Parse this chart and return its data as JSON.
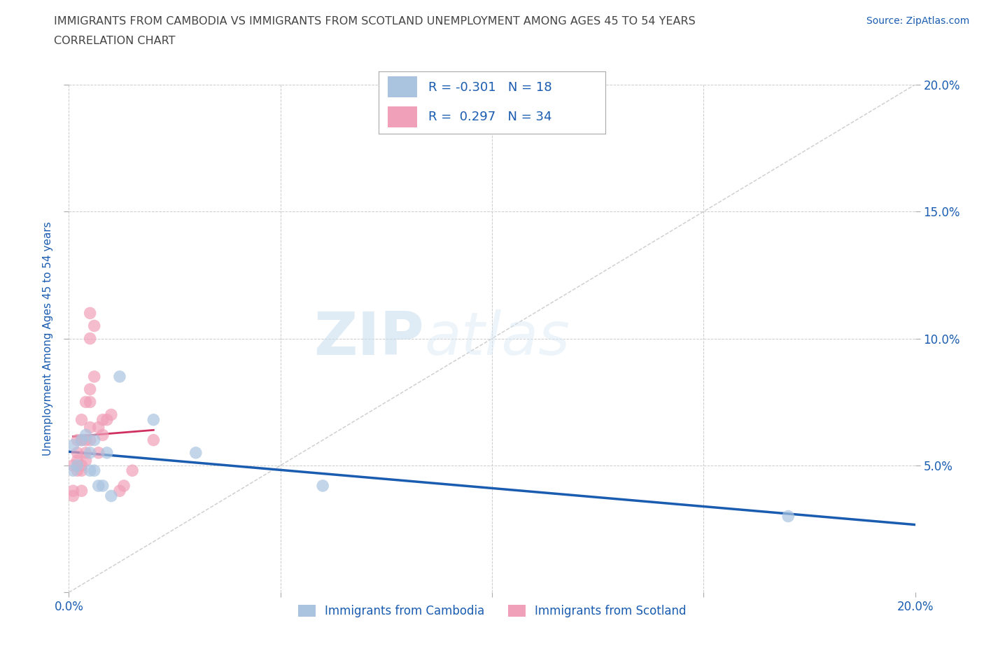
{
  "title_line1": "IMMIGRANTS FROM CAMBODIA VS IMMIGRANTS FROM SCOTLAND UNEMPLOYMENT AMONG AGES 45 TO 54 YEARS",
  "title_line2": "CORRELATION CHART",
  "source": "Source: ZipAtlas.com",
  "ylabel": "Unemployment Among Ages 45 to 54 years",
  "xlim": [
    0.0,
    0.2
  ],
  "ylim": [
    0.0,
    0.2
  ],
  "grid_color": "#cccccc",
  "background_color": "#ffffff",
  "watermark_zip": "ZIP",
  "watermark_atlas": "atlas",
  "legend_R_cambodia": "-0.301",
  "legend_N_cambodia": "18",
  "legend_R_scotland": "0.297",
  "legend_N_scotland": "34",
  "cambodia_color": "#aac4e0",
  "cambodia_line_color": "#1a5cb0",
  "scotland_color": "#f0a0b8",
  "scotland_line_color": "#d03060",
  "diagonal_color": "#cccccc",
  "title_color": "#444444",
  "axis_label_color": "#1a5cb0",
  "tick_color": "#1a5cb0",
  "legend_label1": "Immigrants from Cambodia",
  "legend_label2": "Immigrants from Scotland",
  "cambodia_x": [
    0.001,
    0.001,
    0.002,
    0.003,
    0.004,
    0.005,
    0.005,
    0.006,
    0.006,
    0.007,
    0.008,
    0.009,
    0.01,
    0.012,
    0.02,
    0.03,
    0.06,
    0.17
  ],
  "cambodia_y": [
    0.058,
    0.048,
    0.05,
    0.06,
    0.062,
    0.055,
    0.048,
    0.06,
    0.048,
    0.042,
    0.042,
    0.055,
    0.038,
    0.085,
    0.068,
    0.055,
    0.042,
    0.03
  ],
  "scotland_x": [
    0.001,
    0.001,
    0.001,
    0.002,
    0.002,
    0.002,
    0.002,
    0.003,
    0.003,
    0.003,
    0.003,
    0.003,
    0.004,
    0.004,
    0.004,
    0.004,
    0.005,
    0.005,
    0.005,
    0.005,
    0.005,
    0.005,
    0.006,
    0.006,
    0.007,
    0.007,
    0.008,
    0.008,
    0.009,
    0.01,
    0.012,
    0.013,
    0.015,
    0.02
  ],
  "scotland_y": [
    0.038,
    0.04,
    0.05,
    0.048,
    0.052,
    0.055,
    0.06,
    0.04,
    0.048,
    0.05,
    0.06,
    0.068,
    0.052,
    0.055,
    0.06,
    0.075,
    0.06,
    0.065,
    0.075,
    0.08,
    0.1,
    0.11,
    0.085,
    0.105,
    0.055,
    0.065,
    0.062,
    0.068,
    0.068,
    0.07,
    0.04,
    0.042,
    0.048,
    0.06
  ]
}
